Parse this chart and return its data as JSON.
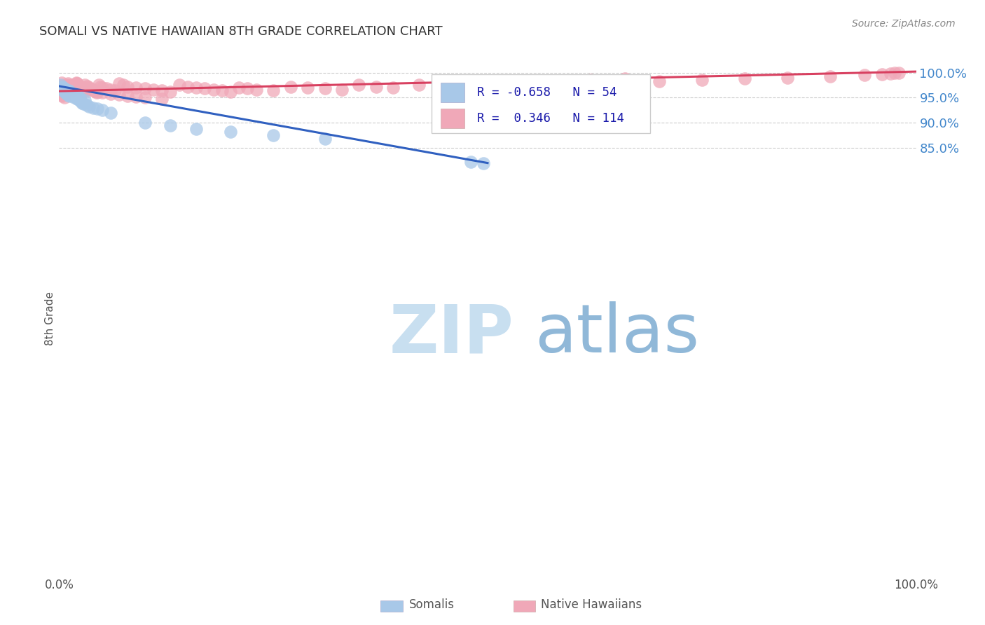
{
  "title": "SOMALI VS NATIVE HAWAIIAN 8TH GRADE CORRELATION CHART",
  "source": "Source: ZipAtlas.com",
  "ylabel": "8th Grade",
  "xlim": [
    0.0,
    1.0
  ],
  "ylim": [
    0.0,
    1.0
  ],
  "ytick_vals": [
    0.85,
    0.9,
    0.95,
    1.0
  ],
  "ytick_labels": [
    "85.0%",
    "90.0%",
    "95.0%",
    "100.0%"
  ],
  "somali_R": -0.658,
  "somali_N": 54,
  "hawaiian_R": 0.346,
  "hawaiian_N": 114,
  "somali_color": "#a8c8e8",
  "hawaiian_color": "#f0a8b8",
  "somali_line_color": "#3060c0",
  "hawaiian_line_color": "#d84060",
  "background_color": "#ffffff",
  "grid_color": "#cccccc",
  "title_color": "#333333",
  "right_tick_color": "#4488cc",
  "watermark_zip_color": "#c8dff0",
  "watermark_atlas_color": "#90b8d8",
  "somali_x": [
    0.001,
    0.002,
    0.003,
    0.003,
    0.004,
    0.004,
    0.005,
    0.005,
    0.006,
    0.006,
    0.007,
    0.007,
    0.008,
    0.008,
    0.009,
    0.009,
    0.01,
    0.01,
    0.011,
    0.011,
    0.012,
    0.012,
    0.013,
    0.014,
    0.015,
    0.016,
    0.017,
    0.018,
    0.019,
    0.02,
    0.02,
    0.021,
    0.022,
    0.023,
    0.024,
    0.025,
    0.026,
    0.027,
    0.028,
    0.03,
    0.032,
    0.035,
    0.04,
    0.045,
    0.05,
    0.06,
    0.1,
    0.13,
    0.16,
    0.2,
    0.25,
    0.31,
    0.48,
    0.495
  ],
  "somali_y": [
    0.975,
    0.972,
    0.97,
    0.968,
    0.966,
    0.972,
    0.97,
    0.965,
    0.968,
    0.963,
    0.966,
    0.961,
    0.964,
    0.96,
    0.962,
    0.958,
    0.96,
    0.956,
    0.965,
    0.955,
    0.963,
    0.953,
    0.961,
    0.959,
    0.957,
    0.955,
    0.953,
    0.951,
    0.957,
    0.955,
    0.95,
    0.948,
    0.953,
    0.946,
    0.951,
    0.944,
    0.942,
    0.94,
    0.938,
    0.945,
    0.935,
    0.932,
    0.93,
    0.928,
    0.925,
    0.92,
    0.9,
    0.895,
    0.888,
    0.882,
    0.875,
    0.868,
    0.822,
    0.82
  ],
  "hawaiian_x": [
    0.001,
    0.002,
    0.003,
    0.004,
    0.005,
    0.005,
    0.006,
    0.007,
    0.008,
    0.009,
    0.01,
    0.01,
    0.011,
    0.012,
    0.013,
    0.014,
    0.015,
    0.016,
    0.017,
    0.018,
    0.019,
    0.02,
    0.02,
    0.021,
    0.022,
    0.023,
    0.024,
    0.025,
    0.026,
    0.027,
    0.028,
    0.029,
    0.03,
    0.032,
    0.034,
    0.036,
    0.038,
    0.04,
    0.042,
    0.044,
    0.046,
    0.048,
    0.05,
    0.055,
    0.06,
    0.065,
    0.07,
    0.075,
    0.08,
    0.09,
    0.1,
    0.11,
    0.12,
    0.13,
    0.14,
    0.15,
    0.16,
    0.17,
    0.18,
    0.19,
    0.2,
    0.21,
    0.22,
    0.23,
    0.25,
    0.27,
    0.29,
    0.31,
    0.33,
    0.35,
    0.37,
    0.39,
    0.42,
    0.45,
    0.48,
    0.51,
    0.54,
    0.58,
    0.62,
    0.66,
    0.7,
    0.75,
    0.8,
    0.85,
    0.9,
    0.94,
    0.96,
    0.97,
    0.975,
    0.98,
    0.002,
    0.003,
    0.004,
    0.006,
    0.008,
    0.01,
    0.012,
    0.015,
    0.018,
    0.02,
    0.022,
    0.025,
    0.028,
    0.03,
    0.035,
    0.04,
    0.045,
    0.05,
    0.06,
    0.07,
    0.08,
    0.09,
    0.1,
    0.12
  ],
  "hawaiian_y": [
    0.972,
    0.97,
    0.98,
    0.968,
    0.975,
    0.965,
    0.973,
    0.971,
    0.969,
    0.967,
    0.978,
    0.965,
    0.976,
    0.974,
    0.972,
    0.97,
    0.968,
    0.966,
    0.974,
    0.972,
    0.97,
    0.98,
    0.968,
    0.978,
    0.976,
    0.974,
    0.972,
    0.97,
    0.968,
    0.966,
    0.964,
    0.962,
    0.975,
    0.973,
    0.971,
    0.969,
    0.967,
    0.965,
    0.963,
    0.961,
    0.975,
    0.972,
    0.97,
    0.968,
    0.966,
    0.964,
    0.978,
    0.975,
    0.972,
    0.97,
    0.968,
    0.966,
    0.964,
    0.962,
    0.975,
    0.972,
    0.97,
    0.968,
    0.966,
    0.964,
    0.962,
    0.97,
    0.968,
    0.966,
    0.964,
    0.972,
    0.97,
    0.968,
    0.966,
    0.975,
    0.972,
    0.97,
    0.975,
    0.972,
    0.978,
    0.975,
    0.972,
    0.98,
    0.985,
    0.988,
    0.982,
    0.985,
    0.988,
    0.99,
    0.992,
    0.995,
    0.997,
    0.998,
    0.999,
    1.0,
    0.958,
    0.955,
    0.953,
    0.95,
    0.975,
    0.972,
    0.97,
    0.968,
    0.966,
    0.978,
    0.975,
    0.972,
    0.97,
    0.968,
    0.966,
    0.964,
    0.962,
    0.96,
    0.958,
    0.956,
    0.954,
    0.952,
    0.95,
    0.948
  ]
}
